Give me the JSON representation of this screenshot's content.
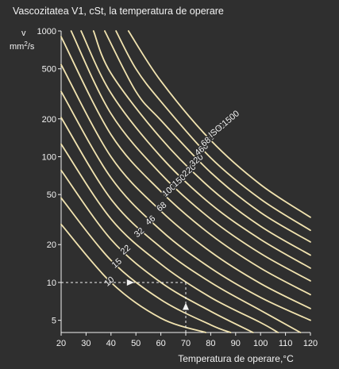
{
  "chart_data": {
    "type": "line",
    "title": "Vascozitatea V1, cSt, la temperatura de operare",
    "ylabel_line1": "v",
    "ylabel_line2_base": "mm",
    "ylabel_line2_exp": "2",
    "ylabel_line2_tail": "/s",
    "xlabel": "Temperatura de operare,°C",
    "y_scale": "log",
    "xlim": [
      20,
      120
    ],
    "ylim": [
      4,
      1000
    ],
    "x_ticks": [
      20,
      30,
      40,
      50,
      60,
      70,
      80,
      90,
      100,
      110,
      120
    ],
    "y_ticks": [
      5,
      10,
      20,
      50,
      100,
      200,
      500,
      1000
    ],
    "grid": false,
    "line_color": "#f2e4b0",
    "series": [
      {
        "name": "10",
        "points": [
          [
            20,
            29.0
          ],
          [
            40,
            10.0
          ],
          [
            60,
            5.2
          ],
          [
            78,
            4.0
          ]
        ]
      },
      {
        "name": "15",
        "points": [
          [
            20,
            47.0
          ],
          [
            40,
            15.0
          ],
          [
            60,
            7.3
          ],
          [
            80,
            4.6
          ],
          [
            88,
            4.0
          ]
        ]
      },
      {
        "name": "22",
        "points": [
          [
            20,
            78.0
          ],
          [
            40,
            22.0
          ],
          [
            60,
            10.0
          ],
          [
            80,
            5.9
          ],
          [
            97,
            4.0
          ]
        ]
      },
      {
        "name": "32",
        "points": [
          [
            20,
            126.0
          ],
          [
            40,
            32.0
          ],
          [
            60,
            14.0
          ],
          [
            80,
            7.6
          ],
          [
            100,
            4.8
          ],
          [
            107,
            4.0
          ]
        ]
      },
      {
        "name": "46",
        "points": [
          [
            20,
            205.0
          ],
          [
            40,
            46.0
          ],
          [
            60,
            19.0
          ],
          [
            80,
            10.0
          ],
          [
            100,
            6.0
          ],
          [
            116,
            4.0
          ]
        ]
      },
      {
        "name": "68",
        "points": [
          [
            20,
            330.0
          ],
          [
            40,
            68.0
          ],
          [
            60,
            26.0
          ],
          [
            80,
            13.0
          ],
          [
            100,
            7.6
          ],
          [
            120,
            5.0
          ]
        ]
      },
      {
        "name": "100",
        "points": [
          [
            20,
            540.0
          ],
          [
            40,
            100.0
          ],
          [
            60,
            37.0
          ],
          [
            80,
            17.5
          ],
          [
            100,
            9.8
          ],
          [
            120,
            6.2
          ]
        ]
      },
      {
        "name": "150",
        "points": [
          [
            20,
            900.0
          ],
          [
            40,
            150.0
          ],
          [
            60,
            53.0
          ],
          [
            80,
            24.0
          ],
          [
            100,
            13.0
          ],
          [
            120,
            8.0
          ]
        ]
      },
      {
        "name": "220",
        "points": [
          [
            24,
            1000.0
          ],
          [
            40,
            220.0
          ],
          [
            60,
            73.0
          ],
          [
            80,
            32.0
          ],
          [
            100,
            17.0
          ],
          [
            120,
            10.3
          ]
        ]
      },
      {
        "name": "320",
        "points": [
          [
            28,
            1000.0
          ],
          [
            40,
            320.0
          ],
          [
            60,
            100.0
          ],
          [
            80,
            42.0
          ],
          [
            100,
            22.0
          ],
          [
            120,
            13.0
          ]
        ]
      },
      {
        "name": "460",
        "points": [
          [
            33,
            1000.0
          ],
          [
            40,
            460.0
          ],
          [
            60,
            140.0
          ],
          [
            80,
            56.0
          ],
          [
            100,
            28.0
          ],
          [
            120,
            16.5
          ]
        ]
      },
      {
        "name": "680",
        "points": [
          [
            37.5,
            1000.0
          ],
          [
            50,
            330.0
          ],
          [
            60,
            195.0
          ],
          [
            80,
            75.0
          ],
          [
            100,
            36.0
          ],
          [
            120,
            21.0
          ]
        ]
      },
      {
        "name": "1000",
        "points": [
          [
            42,
            1000.0
          ],
          [
            50,
            500.0
          ],
          [
            60,
            275.0
          ],
          [
            80,
            98.0
          ],
          [
            100,
            46.0
          ],
          [
            120,
            26.0
          ]
        ]
      },
      {
        "name": "ISO 1500",
        "points": [
          [
            47,
            1000.0
          ],
          [
            60,
            400.0
          ],
          [
            80,
            135.0
          ],
          [
            100,
            60.0
          ],
          [
            120,
            33.0
          ]
        ]
      }
    ],
    "labels": [
      {
        "text": "10",
        "x": 40,
        "y": 9.8
      },
      {
        "text": "15",
        "x": 43,
        "y": 13.7
      },
      {
        "text": "22",
        "x": 46.5,
        "y": 17.5
      },
      {
        "text": "32",
        "x": 52,
        "y": 24.0
      },
      {
        "text": "46",
        "x": 56.5,
        "y": 30.0
      },
      {
        "text": "68",
        "x": 61,
        "y": 38.5
      },
      {
        "text": "100",
        "x": 64,
        "y": 52.0
      },
      {
        "text": "150",
        "x": 68,
        "y": 62.0
      },
      {
        "text": "220",
        "x": 72,
        "y": 75.0
      },
      {
        "text": "320",
        "x": 75,
        "y": 90.0
      },
      {
        "text": "460",
        "x": 77,
        "y": 110.0
      },
      {
        "text": "680",
        "x": 79.5,
        "y": 130.0
      },
      {
        "text": "1000",
        "x": 83,
        "y": 155.0
      },
      {
        "text": "ISO 1500",
        "x": 86,
        "y": 175.0
      }
    ],
    "example_path": {
      "start_x": 20,
      "viscosity": 10,
      "temperature": 70,
      "style": "dashed"
    }
  }
}
